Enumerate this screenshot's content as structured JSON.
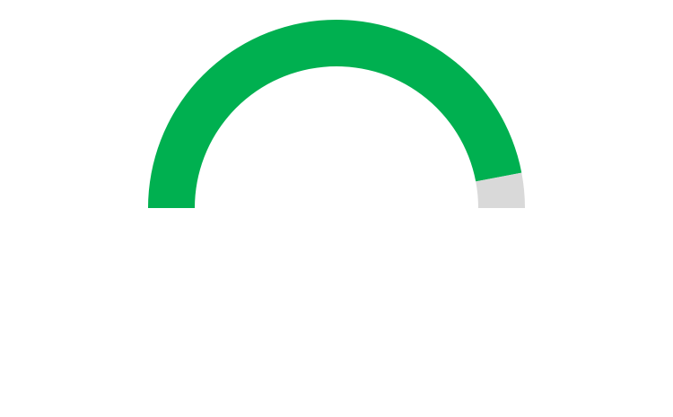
{
  "chart_data": {
    "type": "gauge",
    "value": 0.94,
    "min": 0,
    "max": 1,
    "colors": {
      "filled": "#00b050",
      "remaining": "#d9d9d9",
      "background": "#ffffff"
    }
  }
}
